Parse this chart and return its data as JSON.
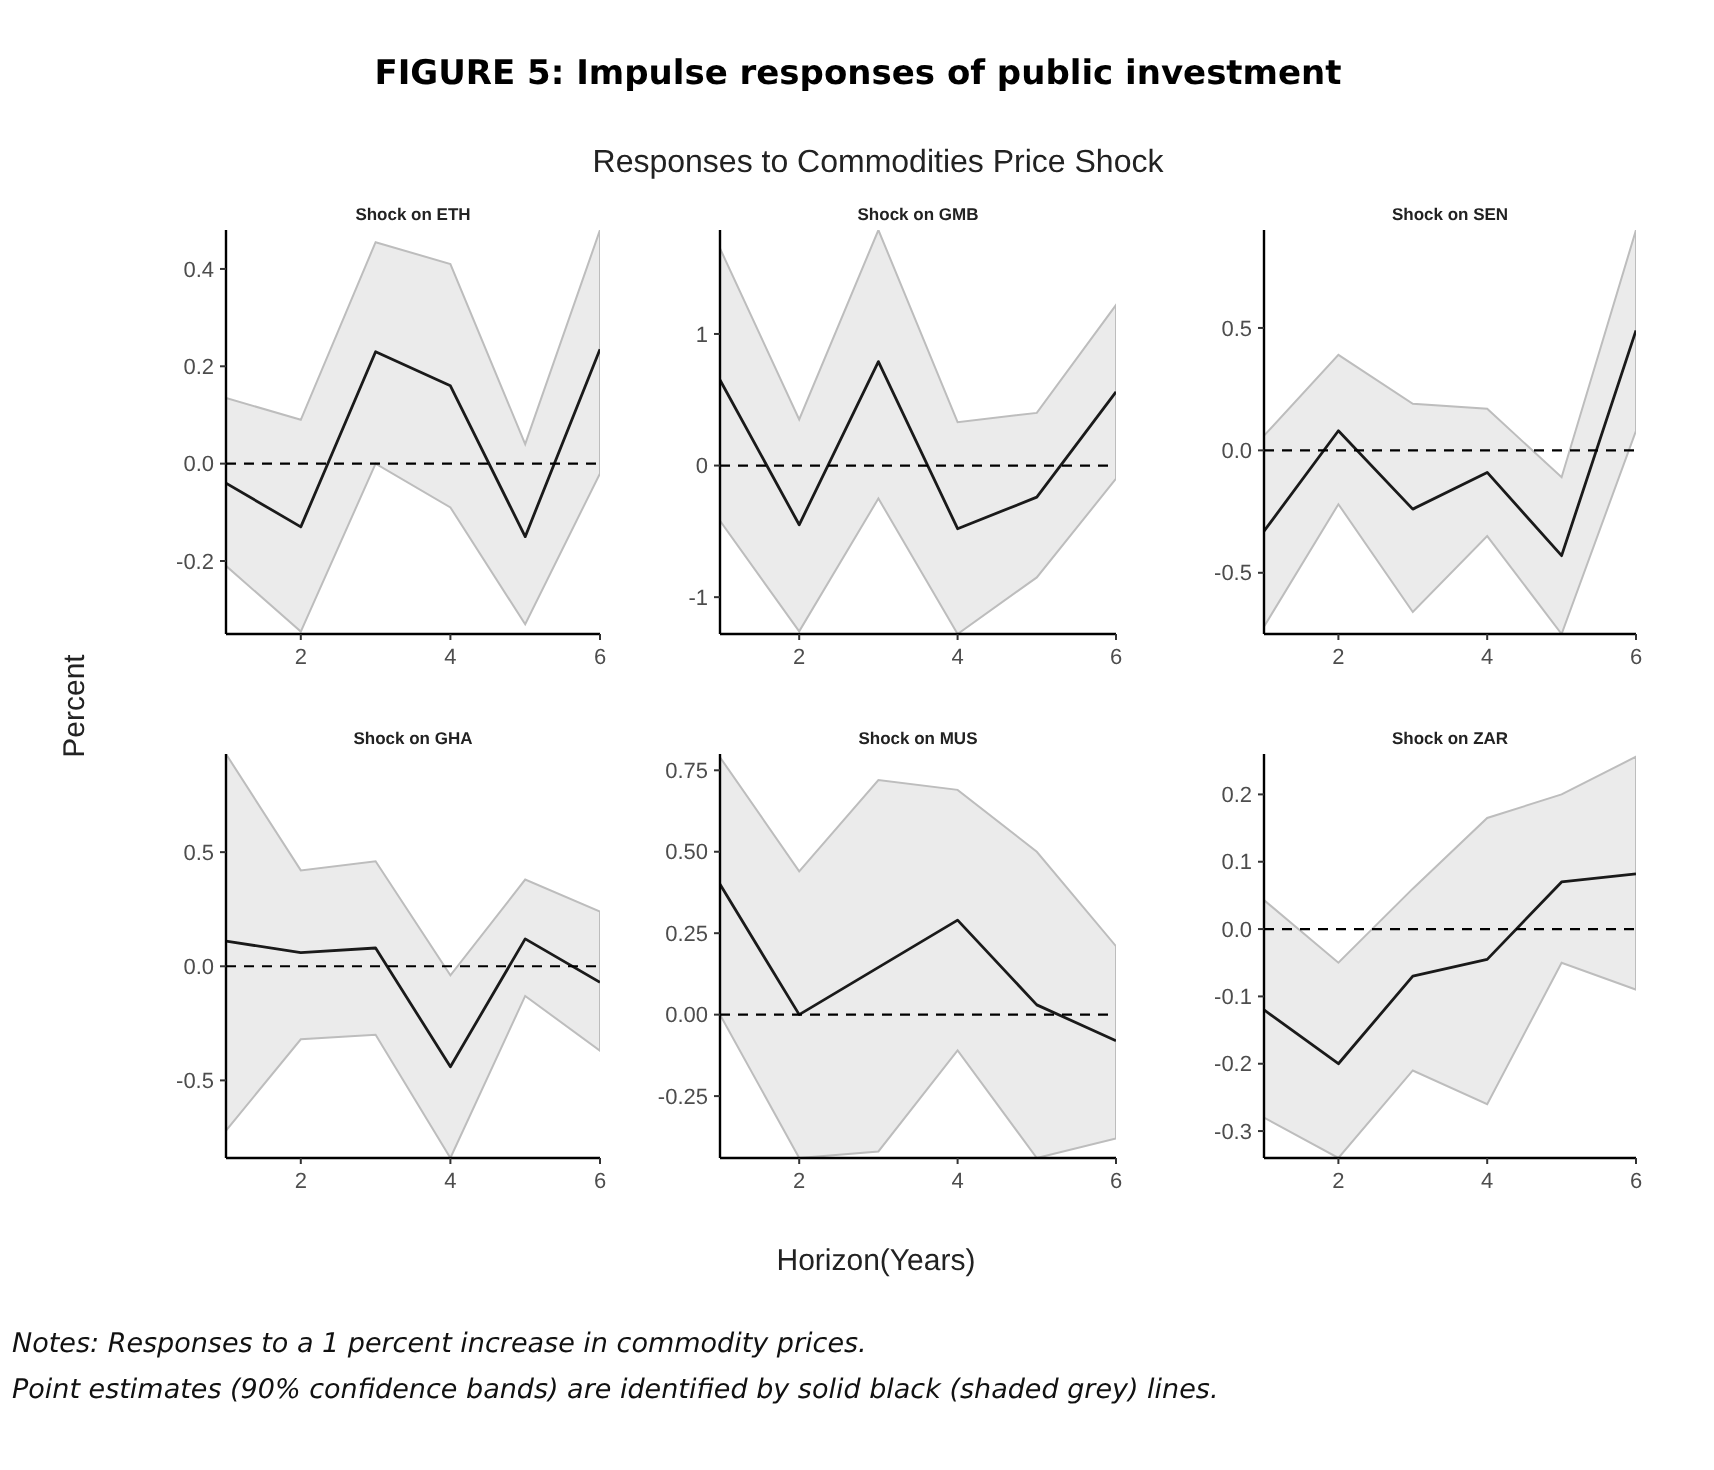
{
  "chart_data": [
    {
      "type": "other",
      "title": "FIGURE 5: Impulse responses of public investment",
      "subtitle": "Responses to Commodities Price Shock",
      "xlabel": "Horizon(Years)",
      "ylabel": "Percent",
      "annotations": [
        "Notes: Responses to a 1 percent increase in commodity prices.",
        "Point estimates (90% confidence bands) are identified by solid black (shaded grey) lines."
      ]
    },
    {
      "type": "line",
      "title": "Shock on ETH",
      "x": [
        1,
        2,
        3,
        4,
        5,
        6
      ],
      "xlim": [
        1,
        6
      ],
      "xticks": [
        2,
        4,
        6
      ],
      "ylim": [
        -0.35,
        0.48
      ],
      "yticks": [
        -0.2,
        {
          "value": 0,
          "label": "0.0"
        },
        0.2,
        0.4
      ],
      "ref_lines": [
        {
          "axis": "y",
          "value": 0,
          "line_style": "dashed"
        }
      ],
      "series": [
        {
          "color": "#1a1a1a",
          "values": [
            -0.04,
            -0.13,
            0.23,
            0.16,
            -0.15,
            0.235
          ],
          "lower": [
            -0.21,
            -0.345,
            0,
            -0.09,
            -0.33,
            -0.02
          ],
          "upper": [
            0.135,
            0.09,
            0.455,
            0.41,
            0.04,
            0.48
          ]
        }
      ]
    },
    {
      "type": "line",
      "title": "Shock on GMB",
      "x": [
        1,
        2,
        3,
        4,
        5,
        6
      ],
      "xlim": [
        1,
        6
      ],
      "xticks": [
        2,
        4,
        6
      ],
      "ylim": [
        -1.28,
        1.79
      ],
      "yticks": [
        -1,
        0,
        1
      ],
      "ref_lines": [
        {
          "axis": "y",
          "value": 0,
          "line_style": "dashed"
        }
      ],
      "series": [
        {
          "color": "#1a1a1a",
          "values": [
            0.65,
            -0.45,
            0.79,
            -0.48,
            -0.24,
            0.56
          ],
          "lower": [
            -0.42,
            -1.26,
            -0.25,
            -1.28,
            -0.85,
            -0.1
          ],
          "upper": [
            1.65,
            0.35,
            1.79,
            0.33,
            0.4,
            1.22
          ]
        }
      ]
    },
    {
      "type": "line",
      "title": "Shock on SEN",
      "x": [
        1,
        2,
        3,
        4,
        5,
        6
      ],
      "xlim": [
        1,
        6
      ],
      "xticks": [
        2,
        4,
        6
      ],
      "ylim": [
        -0.75,
        0.9
      ],
      "yticks": [
        -0.5,
        {
          "value": 0,
          "label": "0.0"
        },
        0.5
      ],
      "ref_lines": [
        {
          "axis": "y",
          "value": 0,
          "line_style": "dashed"
        }
      ],
      "series": [
        {
          "color": "#1a1a1a",
          "values": [
            -0.33,
            0.08,
            -0.24,
            -0.09,
            -0.43,
            0.49
          ],
          "lower": [
            -0.72,
            -0.22,
            -0.66,
            -0.35,
            -0.75,
            0.08
          ],
          "upper": [
            0.06,
            0.39,
            0.19,
            0.17,
            -0.11,
            0.9
          ]
        }
      ]
    },
    {
      "type": "line",
      "title": "Shock on GHA",
      "x": [
        1,
        2,
        3,
        4,
        5,
        6
      ],
      "xlim": [
        1,
        6
      ],
      "xticks": [
        2,
        4,
        6
      ],
      "ylim": [
        -0.84,
        0.93
      ],
      "yticks": [
        -0.5,
        {
          "value": 0,
          "label": "0.0"
        },
        0.5
      ],
      "ref_lines": [
        {
          "axis": "y",
          "value": 0,
          "line_style": "dashed"
        }
      ],
      "series": [
        {
          "color": "#1a1a1a",
          "values": [
            0.11,
            0.06,
            0.08,
            -0.44,
            0.12,
            -0.07
          ],
          "lower": [
            -0.72,
            -0.32,
            -0.3,
            -0.84,
            -0.13,
            -0.37
          ],
          "upper": [
            0.93,
            0.42,
            0.46,
            -0.04,
            0.38,
            0.24
          ]
        }
      ]
    },
    {
      "type": "line",
      "title": "Shock on MUS",
      "x": [
        1,
        2,
        3,
        4,
        5,
        6
      ],
      "xlim": [
        1,
        6
      ],
      "xticks": [
        2,
        4,
        6
      ],
      "ylim": [
        -0.44,
        0.8
      ],
      "yticks": [
        {
          "value": -0.25,
          "label": "-0.25"
        },
        {
          "value": 0,
          "label": "0.00"
        },
        {
          "value": 0.25,
          "label": "0.25"
        },
        {
          "value": 0.5,
          "label": "0.50"
        },
        {
          "value": 0.75,
          "label": "0.75"
        }
      ],
      "ref_lines": [
        {
          "axis": "y",
          "value": 0,
          "line_style": "dashed"
        }
      ],
      "series": [
        {
          "color": "#1a1a1a",
          "values": [
            0.4,
            0,
            0.145,
            0.29,
            0.03,
            -0.08
          ],
          "lower": [
            0,
            -0.44,
            -0.42,
            -0.11,
            -0.44,
            -0.38
          ],
          "upper": [
            0.79,
            0.44,
            0.72,
            0.69,
            0.5,
            0.21
          ]
        }
      ]
    },
    {
      "type": "line",
      "title": "Shock on ZAR",
      "x": [
        1,
        2,
        3,
        4,
        5,
        6
      ],
      "xlim": [
        1,
        6
      ],
      "xticks": [
        2,
        4,
        6
      ],
      "ylim": [
        -0.34,
        0.26
      ],
      "yticks": [
        -0.3,
        -0.2,
        -0.1,
        {
          "value": 0,
          "label": "0.0"
        },
        0.1,
        0.2
      ],
      "ref_lines": [
        {
          "axis": "y",
          "value": 0,
          "line_style": "dashed"
        }
      ],
      "series": [
        {
          "color": "#1a1a1a",
          "values": [
            -0.12,
            -0.2,
            -0.07,
            -0.045,
            0.07,
            0.082
          ],
          "lower": [
            -0.28,
            -0.34,
            -0.21,
            -0.26,
            -0.05,
            -0.09
          ],
          "upper": [
            0.043,
            -0.05,
            0.06,
            0.165,
            0.2,
            0.256
          ]
        }
      ]
    }
  ]
}
